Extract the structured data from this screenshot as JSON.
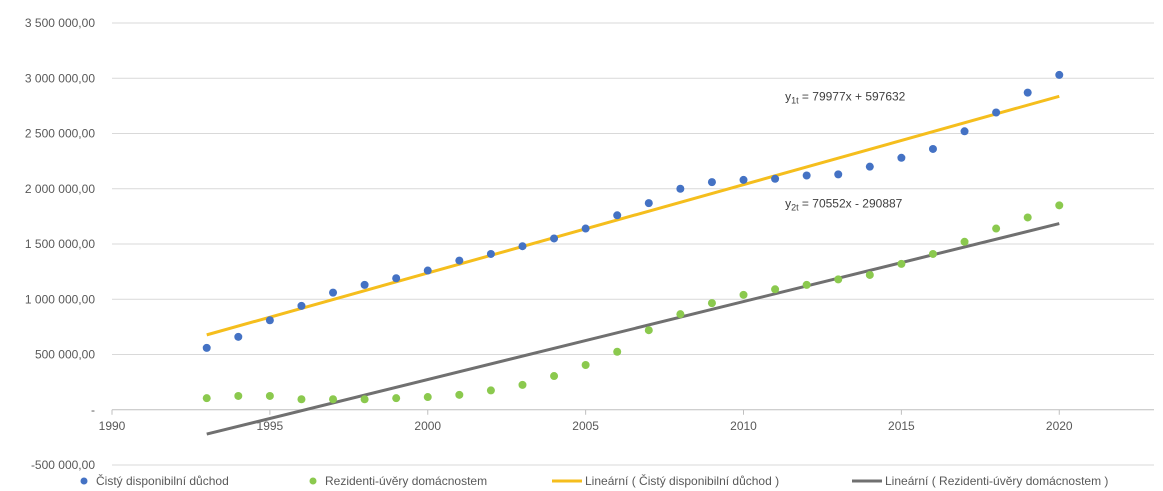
{
  "chart_data": {
    "type": "scatter",
    "x": [
      1993,
      1994,
      1995,
      1996,
      1997,
      1998,
      1999,
      2000,
      2001,
      2002,
      2003,
      2004,
      2005,
      2006,
      2007,
      2008,
      2009,
      2010,
      2011,
      2012,
      2013,
      2014,
      2015,
      2016,
      2017,
      2018,
      2019,
      2020
    ],
    "series": [
      {
        "name": "Čistý disponibilní důchod",
        "color": "#4472C4",
        "values": [
          560000,
          660000,
          810000,
          940000,
          1060000,
          1130000,
          1190000,
          1260000,
          1350000,
          1410000,
          1480000,
          1550000,
          1640000,
          1760000,
          1870000,
          2000000,
          2060000,
          2080000,
          2090000,
          2120000,
          2130000,
          2200000,
          2280000,
          2360000,
          2520000,
          2690000,
          2870000,
          3030000
        ]
      },
      {
        "name": "Rezidenti-úvěry domácnostem",
        "color": "#8BC94E",
        "values": [
          105000,
          125000,
          125000,
          95000,
          95000,
          95000,
          105000,
          115000,
          135000,
          175000,
          225000,
          305000,
          405000,
          525000,
          720000,
          865000,
          965000,
          1040000,
          1090000,
          1130000,
          1180000,
          1220000,
          1320000,
          1410000,
          1520000,
          1640000,
          1740000,
          1850000
        ]
      }
    ],
    "trendlines": [
      {
        "name": "Lineární ( Čistý disponibilní důchod )",
        "color": "#F5BE1D",
        "slope": 79977,
        "intercept": 597632,
        "x_from": 1993,
        "x_to": 2020
      },
      {
        "name": "Lineární ( Rezidenti-úvěry domácnostem )",
        "color": "#707070",
        "slope": 70552,
        "intercept": -290887,
        "x_from": 1993,
        "x_to": 2020
      }
    ],
    "equations": [
      {
        "prefix": "y",
        "sub": "1t",
        "text": " = 79977x + 597632",
        "x": 2011,
        "y": 2800000
      },
      {
        "prefix": "y",
        "sub": "2t",
        "text": " = 70552x - 290887",
        "x": 2011,
        "y": 1830000
      }
    ],
    "xlim": [
      1990,
      2023
    ],
    "ylim": [
      -500000,
      3500000
    ],
    "x_ticks": [
      {
        "value": 1990,
        "label": "1990"
      },
      {
        "value": 1995,
        "label": "1995"
      },
      {
        "value": 2000,
        "label": "2000"
      },
      {
        "value": 2005,
        "label": "2005"
      },
      {
        "value": 2010,
        "label": "2010"
      },
      {
        "value": 2015,
        "label": "2015"
      },
      {
        "value": 2020,
        "label": "2020"
      }
    ],
    "y_ticks": [
      {
        "value": 3500000,
        "label": "3 500 000,00"
      },
      {
        "value": 3000000,
        "label": "3 000 000,00"
      },
      {
        "value": 2500000,
        "label": "2 500 000,00"
      },
      {
        "value": 2000000,
        "label": "2 000 000,00"
      },
      {
        "value": 1500000,
        "label": "1 500 000,00"
      },
      {
        "value": 1000000,
        "label": "1 000 000,00"
      },
      {
        "value": 500000,
        "label": "500 000,00"
      },
      {
        "value": 0,
        "label": "-"
      },
      {
        "value": -500000,
        "label": "-500 000,00"
      }
    ],
    "grid": true,
    "legend_position": "bottom",
    "colors": {
      "grid": "#D9D9D9",
      "axis": "#BFBFBF",
      "text": "#595959"
    }
  }
}
